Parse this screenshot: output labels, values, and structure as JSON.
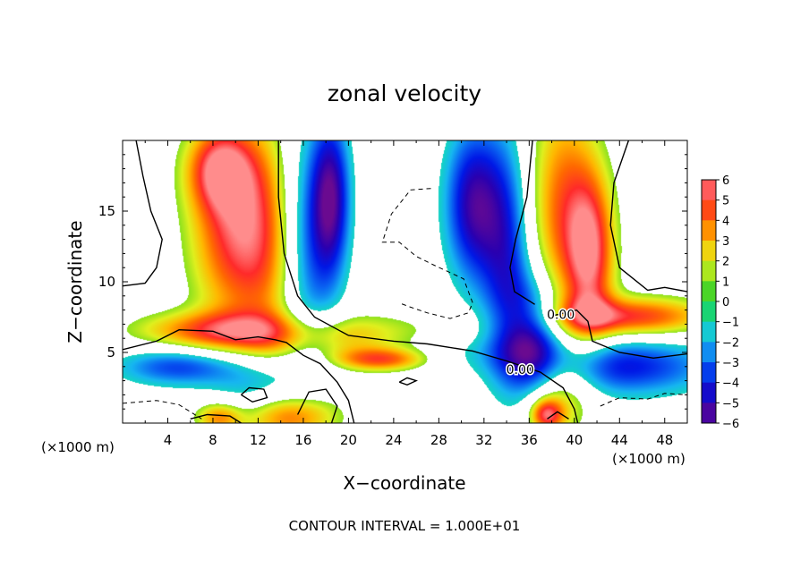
{
  "chart_data": {
    "type": "heatmap",
    "title": "zonal velocity",
    "xlabel": "X−coordinate",
    "ylabel": "Z−coordinate",
    "x_unit_label": "(×1000 m)",
    "y_unit_label": "(×1000 m)",
    "x_ticks": [
      4,
      8,
      12,
      16,
      20,
      24,
      28,
      32,
      36,
      40,
      44,
      48
    ],
    "y_ticks": [
      5,
      10,
      15
    ],
    "xlim": [
      0,
      50
    ],
    "ylim": [
      0,
      20
    ],
    "colorbar": {
      "levels": [
        6,
        5,
        4,
        3,
        2,
        1,
        0,
        -1,
        -2,
        -3,
        -4,
        -5,
        -6
      ],
      "labels": [
        "6",
        "5",
        "4",
        "3",
        "2",
        "1",
        "0",
        "−1",
        "−2",
        "−3",
        "−4",
        "−5",
        "−6"
      ],
      "vmin": -6,
      "vmax": 6
    },
    "contour_labels": [
      {
        "text": "0.00",
        "x": 38.8,
        "y": 7.7
      },
      {
        "text": "0.00",
        "x": 35.2,
        "y": 3.8
      }
    ],
    "footer": "CONTOUR INTERVAL = 1.000E+01",
    "features": [
      {
        "x": 10,
        "z": 14,
        "sx": 2.8,
        "sz": 5,
        "amp": 5.2
      },
      {
        "x": 8.5,
        "z": 18,
        "sx": 2,
        "sz": 2,
        "amp": 4
      },
      {
        "x": 13,
        "z": 12,
        "sx": 2,
        "sz": 6,
        "amp": 2
      },
      {
        "x": 16.5,
        "z": 13,
        "sx": 1.8,
        "sz": 6,
        "amp": -3.2
      },
      {
        "x": 18.5,
        "z": 16,
        "sx": 1.2,
        "sz": 4,
        "amp": -4.8
      },
      {
        "x": 8,
        "z": 6.5,
        "sx": 5,
        "sz": 1,
        "amp": 4
      },
      {
        "x": 20,
        "z": 6,
        "sx": 6,
        "sz": 1.2,
        "amp": 3
      },
      {
        "x": 23,
        "z": 4.5,
        "sx": 3,
        "sz": 0.6,
        "amp": 4.6
      },
      {
        "x": 5,
        "z": 4,
        "sx": 4,
        "sz": 1,
        "amp": -3.6
      },
      {
        "x": 12,
        "z": 2.5,
        "sx": 3,
        "sz": 1.5,
        "amp": -2.5
      },
      {
        "x": 15,
        "z": 0.5,
        "sx": 3,
        "sz": 1.2,
        "amp": 4.2
      },
      {
        "x": 8.5,
        "z": 0.4,
        "sx": 1.5,
        "sz": 0.8,
        "amp": 3.5
      },
      {
        "x": 31,
        "z": 15.5,
        "sx": 1.8,
        "sz": 4,
        "amp": -5
      },
      {
        "x": 34,
        "z": 12,
        "sx": 1.6,
        "sz": 6,
        "amp": -3.8
      },
      {
        "x": 36.5,
        "z": 6,
        "sx": 1.8,
        "sz": 3,
        "amp": -4.6
      },
      {
        "x": 39,
        "z": 15,
        "sx": 2.2,
        "sz": 6,
        "amp": 4
      },
      {
        "x": 41.5,
        "z": 12,
        "sx": 1.5,
        "sz": 4,
        "amp": 4.8
      },
      {
        "x": 45,
        "z": 7.5,
        "sx": 5,
        "sz": 1,
        "amp": 5
      },
      {
        "x": 44,
        "z": 4,
        "sx": 6,
        "sz": 1.5,
        "amp": -4.2
      },
      {
        "x": 38.5,
        "z": 2,
        "sx": 2,
        "sz": 2,
        "amp": 3
      },
      {
        "x": 37.5,
        "z": 0.6,
        "sx": 1,
        "sz": 0.8,
        "amp": 4.5
      },
      {
        "x": 27,
        "z": 5,
        "sx": 6,
        "sz": 1,
        "amp": -1.5
      }
    ],
    "contours": [
      [
        [
          0,
          9.7
        ],
        [
          2,
          9.9
        ],
        [
          3,
          11
        ],
        [
          3.5,
          13
        ],
        [
          2.5,
          15
        ],
        [
          1.8,
          17.5
        ],
        [
          1.2,
          20
        ]
      ],
      [
        [
          44.8,
          20
        ],
        [
          43.5,
          17
        ],
        [
          43.2,
          14
        ],
        [
          44,
          11
        ],
        [
          46.5,
          9.4
        ],
        [
          48,
          9.6
        ],
        [
          50,
          9.3
        ]
      ],
      [
        [
          13.8,
          20
        ],
        [
          13.8,
          16
        ],
        [
          14.3,
          12
        ],
        [
          15.5,
          9
        ],
        [
          17,
          7.5
        ],
        [
          20,
          6.2
        ],
        [
          24,
          5.8
        ],
        [
          27,
          5.6
        ],
        [
          31,
          5.1
        ],
        [
          34,
          4.4
        ],
        [
          37,
          3.6
        ],
        [
          39,
          2.5
        ],
        [
          40,
          1
        ],
        [
          40.3,
          0
        ]
      ],
      [
        [
          0,
          5.2
        ],
        [
          3,
          5.8
        ],
        [
          5,
          6.6
        ],
        [
          8,
          6.5
        ],
        [
          10,
          5.9
        ],
        [
          12,
          6.1
        ],
        [
          13.5,
          5.9
        ],
        [
          14.5,
          5.7
        ],
        [
          16,
          4.8
        ],
        [
          17.5,
          4.2
        ],
        [
          19,
          2.9
        ],
        [
          20,
          1.6
        ],
        [
          20.5,
          0
        ]
      ],
      [
        [
          36.3,
          20
        ],
        [
          35.8,
          16
        ],
        [
          34.8,
          13
        ],
        [
          34.3,
          11
        ],
        [
          34.7,
          9.3
        ],
        [
          35.5,
          8.9
        ],
        [
          36.5,
          8.4
        ]
      ],
      [
        [
          38.1,
          7.6
        ],
        [
          40.2,
          8.0
        ],
        [
          41.2,
          7.2
        ],
        [
          41.6,
          5.8
        ],
        [
          44,
          5
        ],
        [
          47,
          4.6
        ],
        [
          50,
          4.9
        ]
      ],
      [
        [
          10.5,
          2
        ],
        [
          11.2,
          2.5
        ],
        [
          12.5,
          2.4
        ],
        [
          12.8,
          1.8
        ],
        [
          11.5,
          1.5
        ],
        [
          10.5,
          2
        ]
      ],
      [
        [
          6,
          0.3
        ],
        [
          7.5,
          0.6
        ],
        [
          9.5,
          0.5
        ],
        [
          10.5,
          0
        ]
      ],
      [
        [
          15.5,
          0.6
        ],
        [
          16.5,
          2.2
        ],
        [
          18,
          2.4
        ],
        [
          19,
          1.2
        ],
        [
          18.5,
          0
        ]
      ],
      [
        [
          24.5,
          2.9
        ],
        [
          25.2,
          3.2
        ],
        [
          26,
          3
        ],
        [
          25.2,
          2.7
        ],
        [
          24.5,
          2.9
        ]
      ],
      [
        [
          37.6,
          0.3
        ],
        [
          38.5,
          0.8
        ],
        [
          39.5,
          0.3
        ]
      ]
    ],
    "dashed_contours": [
      [
        [
          27.3,
          16.6
        ],
        [
          25.5,
          16.5
        ],
        [
          23.8,
          14.8
        ],
        [
          23,
          12.8
        ],
        [
          24.5,
          12.8
        ],
        [
          26,
          11.8
        ],
        [
          27.5,
          11.2
        ],
        [
          30.2,
          10.2
        ],
        [
          31,
          8.5
        ],
        [
          30.6,
          7.8
        ],
        [
          29,
          7.4
        ],
        [
          27,
          7.8
        ],
        [
          25.5,
          8.2
        ],
        [
          24.5,
          8.5
        ]
      ],
      [
        [
          0,
          1.4
        ],
        [
          3,
          1.6
        ],
        [
          5,
          1.3
        ],
        [
          6,
          0.8
        ],
        [
          7,
          0.3
        ]
      ],
      [
        [
          42.3,
          1.2
        ],
        [
          44,
          1.8
        ],
        [
          46.5,
          1.7
        ],
        [
          48,
          2.1
        ],
        [
          50,
          2.0
        ]
      ]
    ]
  }
}
